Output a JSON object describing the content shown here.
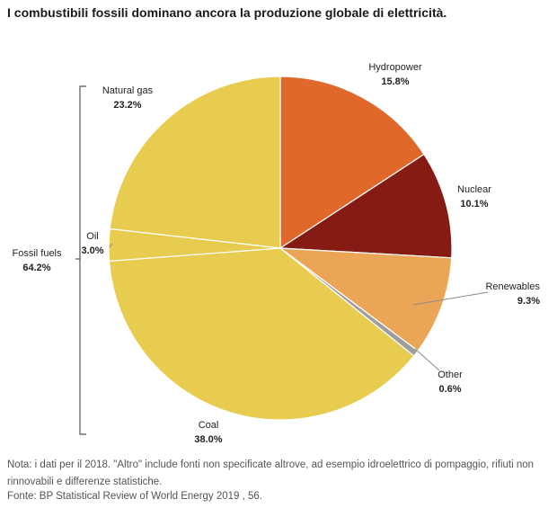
{
  "title": "I combustibili fossili dominano ancora la produzione globale di elettricità.",
  "colors": {
    "hydropower": "#E0682A",
    "nuclear": "#861B14",
    "renewables": "#EAA656",
    "other": "#9E9E9E",
    "fossil": "#E8CC4F",
    "leader": "#888888",
    "bracket": "#555555"
  },
  "chart_data": {
    "type": "pie",
    "title": "",
    "slices": [
      {
        "label": "Hydropower",
        "value": 15.8,
        "value_label": "15.8%",
        "color_key": "hydropower"
      },
      {
        "label": "Nuclear",
        "value": 10.1,
        "value_label": "10.1%",
        "color_key": "nuclear"
      },
      {
        "label": "Renewables",
        "value": 9.3,
        "value_label": "9.3%",
        "color_key": "renewables"
      },
      {
        "label": "Other",
        "value": 0.6,
        "value_label": "0.6%",
        "color_key": "other"
      },
      {
        "label": "Coal",
        "value": 38.0,
        "value_label": "38.0%",
        "color_key": "fossil"
      },
      {
        "label": "Oil",
        "value": 3.0,
        "value_label": "3.0%",
        "color_key": "fossil"
      },
      {
        "label": "Natural gas",
        "value": 23.2,
        "value_label": "23.2%",
        "color_key": "fossil"
      }
    ],
    "group": {
      "label": "Fossil fuels",
      "value_label": "64.2%",
      "members": [
        "Coal",
        "Oil",
        "Natural gas"
      ]
    }
  },
  "note": "Nota: i dati per il 2018. \"Altro\" include fonti non specificate altrove, ad esempio idroelettrico di pompaggio, rifiuti non rinnovabili e differenze statistiche.",
  "source": "Fonte: BP Statistical Review of World Energy 2019 , 56."
}
